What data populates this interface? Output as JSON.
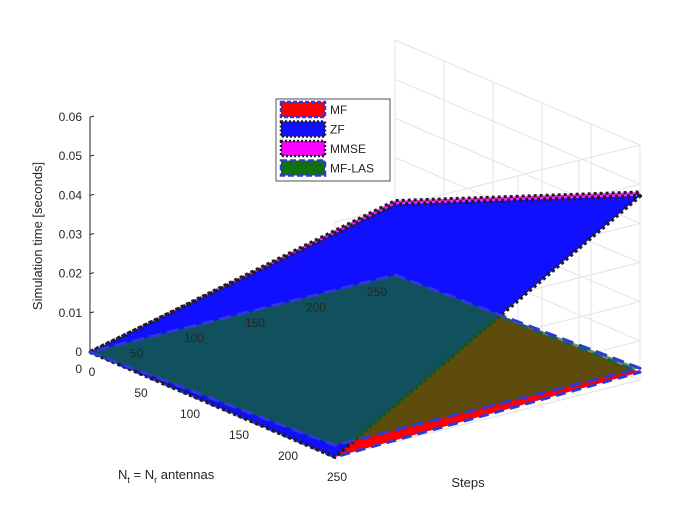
{
  "chart_data": {
    "type": "3d-surface",
    "title": "",
    "zlabel": "Simulation time [seconds]",
    "xlabel": "Steps",
    "ylabel_main": "N",
    "ylabel_sub1": "t",
    "ylabel_mid": " = N",
    "ylabel_sub2": "r",
    "ylabel_end": " antennas",
    "x_ticks": [
      "0",
      "50",
      "100",
      "150",
      "200",
      "250"
    ],
    "y_ticks": [
      "0",
      "50",
      "100",
      "150",
      "200",
      "250"
    ],
    "z_ticks": [
      "0",
      "0.01",
      "0.02",
      "0.03",
      "0.04",
      "0.05",
      "0.06"
    ],
    "xlim": [
      0,
      250
    ],
    "ylim": [
      0,
      250
    ],
    "zlim": [
      0,
      0.06
    ],
    "grid": true,
    "legend_position": "top-center",
    "series": [
      {
        "name": "MF",
        "color": "#ff0000",
        "edge_color": "#2f3ad6",
        "corner_values": {
          "steps0_ant0": 0.0,
          "steps250_ant0": 0.0,
          "steps0_ant250": 0.0,
          "steps250_ant250": 0.002
        }
      },
      {
        "name": "ZF",
        "color": "#1010ff",
        "edge_color": "#202020",
        "corner_values": {
          "steps0_ant0": 0.0,
          "steps250_ant0": 0.0,
          "steps0_ant250": 0.018,
          "steps250_ant250": 0.047
        }
      },
      {
        "name": "MMSE",
        "color": "#ff00ff",
        "edge_color": "#202020",
        "corner_values": {
          "steps0_ant0": 0.0,
          "steps250_ant0": 0.0,
          "steps0_ant250": 0.019,
          "steps250_ant250": 0.048
        }
      },
      {
        "name": "MF-LAS",
        "color": "#107010",
        "edge_color": "#2f3ad6",
        "corner_values": {
          "steps0_ant0": 0.0,
          "steps250_ant0": 0.003,
          "steps0_ant250": 0.0,
          "steps250_ant250": 0.003
        }
      }
    ]
  }
}
